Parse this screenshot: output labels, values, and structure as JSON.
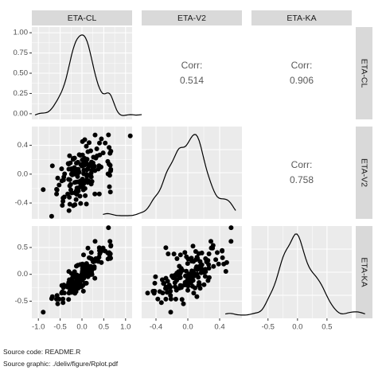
{
  "chart_data": {
    "type": "scatter",
    "variables": [
      "ETA-CL",
      "ETA-V2",
      "ETA-KA"
    ],
    "x_ticks": [
      [
        "-1.0",
        "-0.5",
        "0.0",
        "0.5",
        "1.0"
      ],
      [
        "-0.4",
        "0.0",
        "0.4"
      ],
      [
        "-0.5",
        "0.0",
        "0.5"
      ]
    ],
    "y_ticks_row_1": [
      "1.00",
      "0.75",
      "0.50",
      "0.25",
      "0.00"
    ],
    "y_ticks_row_2": [
      "0.4",
      "0.0",
      "-0.4"
    ],
    "y_ticks_row_3": [
      "0.5",
      "0.0",
      "-0.5"
    ],
    "correlations": [
      {
        "row": "ETA-CL",
        "col": "ETA-V2",
        "label": "Corr:",
        "value": "0.514"
      },
      {
        "row": "ETA-CL",
        "col": "ETA-KA",
        "label": "Corr:",
        "value": "0.906"
      },
      {
        "row": "ETA-V2",
        "col": "ETA-KA",
        "label": "Corr:",
        "value": "0.758"
      }
    ],
    "grid": true
  },
  "captions": {
    "source_code": "Source code: README.R",
    "source_graphic": "Source graphic: ./deliv/figure/Rplot.pdf"
  }
}
